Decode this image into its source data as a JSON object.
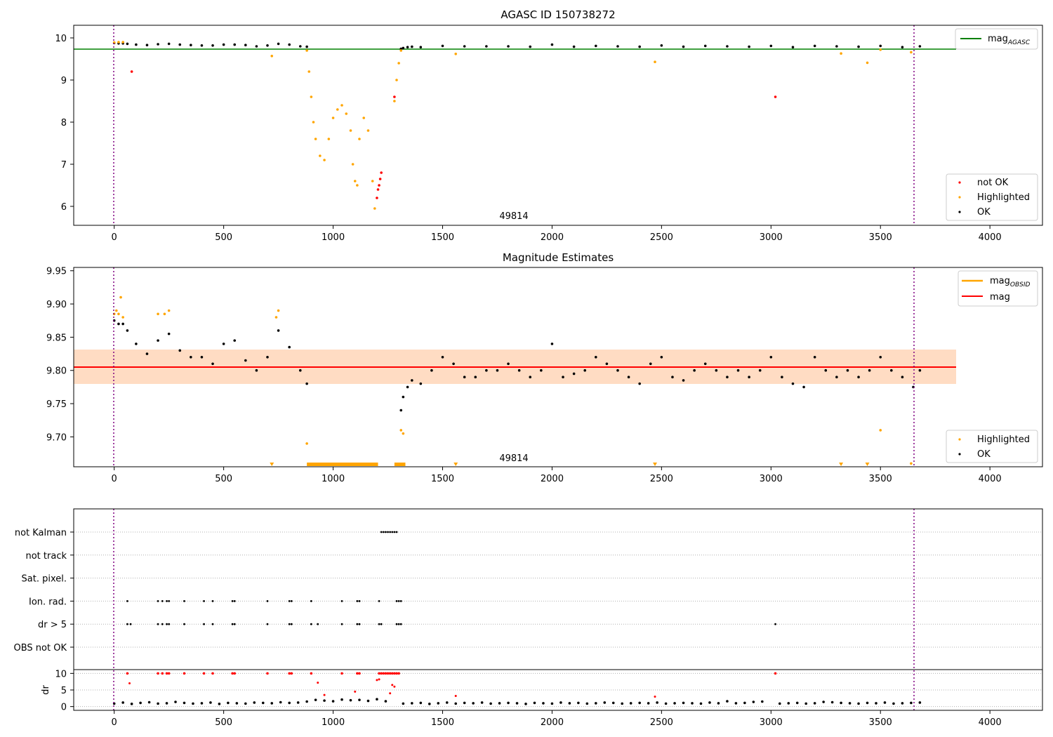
{
  "chart_data": [
    {
      "type": "scatter",
      "title": "AGASC ID 150738272",
      "xlim": [
        -185,
        4240
      ],
      "ylim": [
        5.55,
        10.3
      ],
      "xticks": [
        0,
        500,
        1000,
        1500,
        2000,
        2500,
        3000,
        3500,
        4000
      ],
      "yticks": [
        6,
        7,
        8,
        9,
        10
      ],
      "annotation": "49814",
      "mag_agasc": 9.73,
      "obs_bounds": [
        0,
        3680
      ],
      "legend_lines": [
        {
          "name": "mag",
          "sub": "AGASC",
          "color": "#008000"
        }
      ],
      "legend_points": [
        {
          "name": "not OK",
          "color": "#ff0000"
        },
        {
          "name": "Highlighted",
          "color": "#ffa500"
        },
        {
          "name": "OK",
          "color": "#000000"
        }
      ],
      "series": [
        {
          "name": "OK",
          "color": "#000000",
          "x": [
            0,
            20,
            40,
            60,
            100,
            150,
            200,
            250,
            300,
            350,
            400,
            450,
            500,
            550,
            600,
            650,
            700,
            750,
            800,
            850,
            880,
            1310,
            1320,
            1340,
            1360,
            1400,
            1500,
            1600,
            1700,
            1800,
            1900,
            2000,
            2100,
            2200,
            2300,
            2400,
            2500,
            2600,
            2700,
            2800,
            2900,
            3000,
            3100,
            3200,
            3300,
            3400,
            3500,
            3600,
            3680
          ],
          "y": [
            9.88,
            9.87,
            9.87,
            9.86,
            9.84,
            9.83,
            9.85,
            9.86,
            9.84,
            9.83,
            9.82,
            9.82,
            9.84,
            9.84,
            9.83,
            9.8,
            9.82,
            9.86,
            9.84,
            9.8,
            9.79,
            9.74,
            9.76,
            9.78,
            9.79,
            9.78,
            9.81,
            9.8,
            9.8,
            9.8,
            9.79,
            9.84,
            9.79,
            9.81,
            9.8,
            9.79,
            9.82,
            9.79,
            9.81,
            9.8,
            9.79,
            9.81,
            9.78,
            9.81,
            9.8,
            9.79,
            9.81,
            9.78,
            9.8
          ]
        },
        {
          "name": "Highlighted",
          "color": "#ffa500",
          "x": [
            0,
            20,
            40,
            720,
            880,
            890,
            900,
            910,
            920,
            940,
            960,
            980,
            1000,
            1020,
            1040,
            1060,
            1080,
            1090,
            1100,
            1110,
            1120,
            1140,
            1160,
            1180,
            1190,
            1280,
            1290,
            1300,
            1310,
            1560,
            2470,
            3320,
            3440,
            3500,
            3640
          ],
          "y": [
            9.89,
            9.9,
            9.9,
            9.57,
            9.7,
            9.2,
            8.6,
            8.0,
            7.6,
            7.2,
            7.1,
            7.6,
            8.1,
            8.3,
            8.4,
            8.2,
            7.8,
            7.0,
            6.6,
            6.5,
            7.6,
            8.1,
            7.8,
            6.6,
            5.95,
            8.5,
            9.0,
            9.4,
            9.7,
            9.62,
            9.43,
            9.63,
            9.41,
            9.72,
            9.66
          ]
        },
        {
          "name": "not OK",
          "color": "#ff0000",
          "x": [
            80,
            1200,
            1205,
            1210,
            1215,
            1220,
            1280,
            3020
          ],
          "y": [
            9.2,
            6.2,
            6.4,
            6.5,
            6.65,
            6.8,
            8.6,
            8.6
          ]
        }
      ]
    },
    {
      "type": "scatter",
      "title": "Magnitude Estimates",
      "xlim": [
        -185,
        4240
      ],
      "ylim": [
        9.655,
        9.955
      ],
      "xticks": [
        0,
        500,
        1000,
        1500,
        2000,
        2500,
        3000,
        3500,
        4000
      ],
      "yticks": [
        9.7,
        9.75,
        9.8,
        9.85,
        9.9,
        9.95
      ],
      "ytick_labels": [
        "9.70",
        "9.75",
        "9.80",
        "9.85",
        "9.90",
        "9.95"
      ],
      "annotation": "49814",
      "mag": 9.807,
      "mag_band": [
        9.781,
        9.833
      ],
      "obs_bounds": [
        0,
        3680
      ],
      "legend_lines": [
        {
          "name": "mag",
          "sub": "OBSID",
          "color": "#ffa500"
        },
        {
          "name": "mag",
          "sub": "",
          "color": "#ff0000"
        }
      ],
      "legend_points": [
        {
          "name": "Highlighted",
          "color": "#ffa500"
        },
        {
          "name": "OK",
          "color": "#000000"
        }
      ],
      "series": [
        {
          "name": "OK",
          "color": "#000000",
          "x": [
            0,
            20,
            40,
            60,
            100,
            150,
            200,
            250,
            300,
            350,
            400,
            450,
            500,
            550,
            600,
            650,
            700,
            750,
            800,
            850,
            880,
            1310,
            1320,
            1340,
            1360,
            1400,
            1450,
            1500,
            1550,
            1600,
            1650,
            1700,
            1750,
            1800,
            1850,
            1900,
            1950,
            2000,
            2050,
            2100,
            2150,
            2200,
            2250,
            2300,
            2350,
            2400,
            2450,
            2500,
            2550,
            2600,
            2650,
            2700,
            2750,
            2800,
            2850,
            2900,
            2950,
            3000,
            3050,
            3100,
            3150,
            3200,
            3250,
            3300,
            3350,
            3400,
            3450,
            3500,
            3550,
            3600,
            3650,
            3680
          ],
          "y": [
            9.875,
            9.87,
            9.87,
            9.86,
            9.84,
            9.825,
            9.845,
            9.855,
            9.83,
            9.82,
            9.82,
            9.81,
            9.84,
            9.845,
            9.815,
            9.8,
            9.82,
            9.86,
            9.835,
            9.8,
            9.78,
            9.74,
            9.76,
            9.775,
            9.785,
            9.78,
            9.8,
            9.82,
            9.81,
            9.79,
            9.79,
            9.8,
            9.8,
            9.81,
            9.8,
            9.79,
            9.8,
            9.84,
            9.79,
            9.795,
            9.8,
            9.82,
            9.81,
            9.8,
            9.79,
            9.78,
            9.81,
            9.82,
            9.79,
            9.785,
            9.8,
            9.81,
            9.8,
            9.79,
            9.8,
            9.79,
            9.8,
            9.82,
            9.79,
            9.78,
            9.775,
            9.82,
            9.8,
            9.79,
            9.8,
            9.79,
            9.8,
            9.82,
            9.8,
            9.79,
            9.775,
            9.8
          ]
        },
        {
          "name": "Highlighted",
          "color": "#ffa500",
          "x": [
            0,
            10,
            20,
            30,
            40,
            200,
            230,
            250,
            740,
            750,
            880,
            1310,
            1320,
            3500,
            3640
          ],
          "y": [
            9.885,
            9.89,
            9.885,
            9.91,
            9.88,
            9.885,
            9.885,
            9.89,
            9.88,
            9.89,
            9.69,
            9.71,
            9.705,
            9.71,
            9.66
          ]
        }
      ],
      "below_axis_highlighted_x": [
        720,
        1560,
        2470,
        3320,
        3440
      ],
      "below_axis_highlighted_ranges": [
        [
          880,
          1205
        ],
        [
          1280,
          1330
        ]
      ]
    },
    {
      "type": "scatter",
      "title": "",
      "xlim": [
        -185,
        4240
      ],
      "xticks": [
        0,
        500,
        1000,
        1500,
        2000,
        2500,
        3000,
        3500,
        4000
      ],
      "obs_bounds": [
        0,
        3680
      ],
      "flag_rows": [
        "not Kalman",
        "not track",
        "Sat. pixel.",
        "Ion. rad.",
        "dr > 5",
        "OBS not OK"
      ],
      "flags": [
        {
          "row": "not Kalman",
          "x": [
            1220,
            1230,
            1240,
            1250,
            1260,
            1270,
            1280,
            1290
          ]
        },
        {
          "row": "Ion. rad.",
          "x": [
            60,
            200,
            220,
            240,
            250,
            320,
            410,
            450,
            540,
            550,
            700,
            800,
            810,
            900,
            1040,
            1110,
            1120,
            1210,
            1290,
            1300,
            1310
          ]
        },
        {
          "row": "dr > 5",
          "x": [
            60,
            75,
            200,
            220,
            240,
            250,
            320,
            410,
            450,
            540,
            550,
            700,
            800,
            810,
            900,
            930,
            1040,
            1110,
            1120,
            1210,
            1220,
            1290,
            1300,
            1310,
            3020
          ]
        }
      ],
      "dr_ylabel": "dr",
      "dr_yticks": [
        0,
        5,
        10
      ],
      "dr_ylim": [
        -0.5,
        10.5
      ],
      "dr_series": {
        "x": [
          0,
          40,
          80,
          120,
          160,
          200,
          240,
          280,
          320,
          360,
          400,
          440,
          480,
          520,
          560,
          600,
          640,
          680,
          720,
          760,
          800,
          840,
          880,
          920,
          960,
          1000,
          1040,
          1080,
          1120,
          1160,
          1200,
          1240,
          1320,
          1360,
          1400,
          1440,
          1480,
          1520,
          1560,
          1600,
          1640,
          1680,
          1720,
          1760,
          1800,
          1840,
          1880,
          1920,
          1960,
          2000,
          2040,
          2080,
          2120,
          2160,
          2200,
          2240,
          2280,
          2320,
          2360,
          2400,
          2440,
          2480,
          2520,
          2560,
          2600,
          2640,
          2680,
          2720,
          2760,
          2800,
          2840,
          2880,
          2920,
          2960,
          3040,
          3080,
          3120,
          3160,
          3200,
          3240,
          3280,
          3320,
          3360,
          3400,
          3440,
          3480,
          3520,
          3560,
          3600,
          3640,
          3680
        ],
        "y": [
          0.9,
          1.2,
          0.8,
          1.1,
          1.3,
          0.9,
          1.0,
          1.4,
          1.1,
          0.9,
          1.0,
          1.2,
          0.8,
          1.1,
          1.0,
          0.9,
          1.2,
          1.1,
          1.0,
          1.3,
          1.1,
          1.2,
          1.5,
          2.0,
          1.8,
          1.6,
          2.1,
          1.9,
          2.0,
          1.7,
          2.2,
          1.6,
          0.9,
          1.0,
          1.1,
          0.8,
          1.0,
          1.2,
          0.9,
          1.1,
          1.0,
          1.2,
          0.9,
          1.0,
          1.1,
          1.0,
          0.8,
          1.1,
          1.0,
          0.9,
          1.2,
          1.0,
          1.1,
          0.9,
          1.0,
          1.2,
          1.1,
          0.9,
          1.0,
          1.1,
          1.0,
          1.2,
          0.9,
          1.0,
          1.1,
          1.0,
          0.9,
          1.2,
          1.0,
          1.6,
          1.0,
          1.1,
          1.4,
          1.5,
          0.9,
          1.0,
          1.1,
          0.9,
          1.0,
          1.4,
          1.3,
          1.1,
          1.0,
          0.9,
          1.1,
          1.0,
          1.2,
          0.9,
          1.0,
          1.1,
          1.2
        ]
      },
      "dr_clipped_x": [
        60,
        200,
        220,
        240,
        250,
        320,
        410,
        450,
        540,
        550,
        700,
        800,
        810,
        900,
        1040,
        1110,
        1120,
        1210,
        1220,
        1230,
        1240,
        1250,
        1260,
        1270,
        1280,
        1290,
        1300,
        3020
      ],
      "dr_red_points": {
        "x": [
          70,
          930,
          960,
          1100,
          1200,
          1210,
          1260,
          1270,
          1280,
          1560,
          2470
        ],
        "y": [
          7,
          7.2,
          3.5,
          4.5,
          8,
          8.2,
          4,
          6.5,
          6,
          3.2,
          3
        ]
      }
    }
  ]
}
